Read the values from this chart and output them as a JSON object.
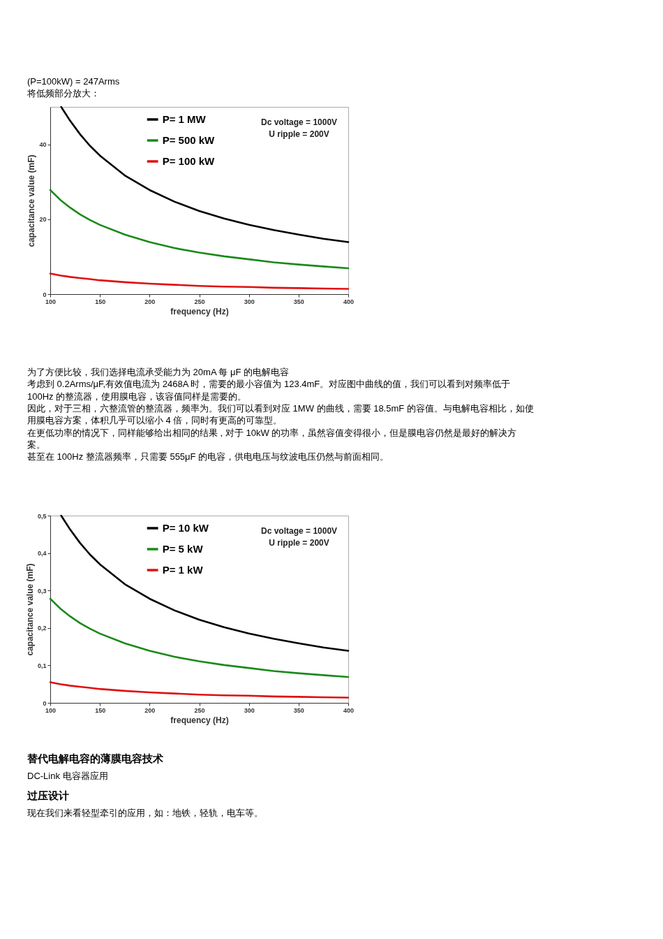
{
  "chart_data": [
    {
      "type": "other",
      "annotations": [
        "(P=100kW) = 247Arms",
        "将低频部分放大："
      ]
    },
    {
      "type": "line",
      "xlabel": "frequency (Hz)",
      "ylabel": "capacitance value (mF)",
      "xlim": [
        100,
        400
      ],
      "xticks": [
        100,
        150,
        200,
        250,
        300,
        350,
        400
      ],
      "ylim": [
        0,
        50
      ],
      "yticks": [
        0,
        20,
        40
      ],
      "grid": false,
      "legend": "top",
      "annotations": [
        "Dc voltage = 1000V",
        "U ripple = 200V"
      ],
      "x": [
        100,
        110,
        120,
        130,
        140,
        150,
        175,
        200,
        225,
        250,
        275,
        300,
        325,
        350,
        375,
        400
      ],
      "series": [
        {
          "name": "P= 1 MW",
          "color": "#000000",
          "x": [
            111,
            120,
            130,
            140,
            150,
            175,
            200,
            225,
            250,
            275,
            300,
            325,
            350,
            375,
            400
          ],
          "values": [
            50.0,
            46.3,
            42.7,
            39.6,
            37.0,
            31.7,
            27.8,
            24.7,
            22.2,
            20.2,
            18.5,
            17.1,
            15.9,
            14.8,
            13.9
          ]
        },
        {
          "name": "P= 500 kW",
          "color": "#1a8a1a",
          "values": [
            27.8,
            25.2,
            23.1,
            21.3,
            19.8,
            18.5,
            15.9,
            13.9,
            12.3,
            11.1,
            10.1,
            9.3,
            8.5,
            7.9,
            7.4,
            6.9
          ]
        },
        {
          "name": "P= 100 kW",
          "color": "#e01010",
          "values": [
            5.5,
            5.0,
            4.6,
            4.3,
            4.0,
            3.7,
            3.2,
            2.8,
            2.5,
            2.2,
            2.0,
            1.9,
            1.7,
            1.6,
            1.5,
            1.4
          ]
        }
      ]
    },
    {
      "type": "other",
      "annotations": [
        "为了方便比较，我们选择电流承受能力为 20mA 每 μF 的电解电容",
        "考虑到  0.2Arms/μF,有效值电流为 2468A 时，需要的最小容值为 123.4mF。对应图中曲线的值，我们可以看到对频率低于",
        "100Hz 的整流器，使用膜电容，该容值同样是需要的。",
        "因此，对于三相，六整流管的整流器，频率为。我们可以看到对应  1MW 的曲线，需要 18.5mF 的容值。与电解电容相比，如使",
        "用膜电容方案，体积几乎可以缩小 4 倍，同时有更高的可靠型。",
        "在更低功率的情况下，同样能够给出相同的结果  , 对于 10kW 的功率，虽然容值变得很小，但是膜电容仍然是最好的解决方",
        "案。",
        "甚至在 100Hz 整流器频率，只需要 555μF 的电容，供电电压与纹波电压仍然与前面相同。"
      ]
    },
    {
      "type": "line",
      "xlabel": "frequency (Hz)",
      "ylabel": "capacitance value (mF)",
      "xlim": [
        100,
        400
      ],
      "xticks": [
        100,
        150,
        200,
        250,
        300,
        350,
        400
      ],
      "ylim": [
        0,
        0.5
      ],
      "yticks": [
        0,
        {
          "value": 0.1,
          "label": "0,1"
        },
        {
          "value": 0.2,
          "label": "0,2"
        },
        {
          "value": 0.3,
          "label": "0,3"
        },
        {
          "value": 0.4,
          "label": "0,4"
        },
        {
          "value": 0.5,
          "label": "0,5"
        }
      ],
      "grid": false,
      "legend": "top",
      "annotations": [
        "Dc voltage = 1000V",
        "U ripple = 200V"
      ],
      "x": [
        100,
        110,
        120,
        130,
        140,
        150,
        175,
        200,
        225,
        250,
        275,
        300,
        325,
        350,
        375,
        400
      ],
      "series": [
        {
          "name": "P= 10 kW",
          "color": "#000000",
          "x": [
            111,
            120,
            130,
            140,
            150,
            175,
            200,
            225,
            250,
            275,
            300,
            325,
            350,
            375,
            400
          ],
          "values": [
            0.5,
            0.463,
            0.427,
            0.396,
            0.37,
            0.317,
            0.278,
            0.247,
            0.222,
            0.202,
            0.185,
            0.171,
            0.159,
            0.148,
            0.139
          ]
        },
        {
          "name": "P= 5 kW",
          "color": "#1a8a1a",
          "values": [
            0.278,
            0.252,
            0.231,
            0.213,
            0.198,
            0.185,
            0.159,
            0.139,
            0.123,
            0.111,
            0.101,
            0.093,
            0.085,
            0.079,
            0.074,
            0.069
          ]
        },
        {
          "name": "P= 1 kW",
          "color": "#e01010",
          "values": [
            0.055,
            0.05,
            0.046,
            0.043,
            0.04,
            0.037,
            0.032,
            0.028,
            0.025,
            0.022,
            0.02,
            0.019,
            0.017,
            0.016,
            0.015,
            0.014
          ]
        }
      ]
    },
    {
      "type": "other",
      "title": "替代电解电容的薄膜电容技术",
      "annotations": [
        "DC-Link 电容器应用"
      ]
    },
    {
      "type": "other",
      "title": "过压设计",
      "annotations": [
        "现在我们来看轻型牵引的应用，如：地铁，轻轨，电车等。"
      ]
    }
  ]
}
